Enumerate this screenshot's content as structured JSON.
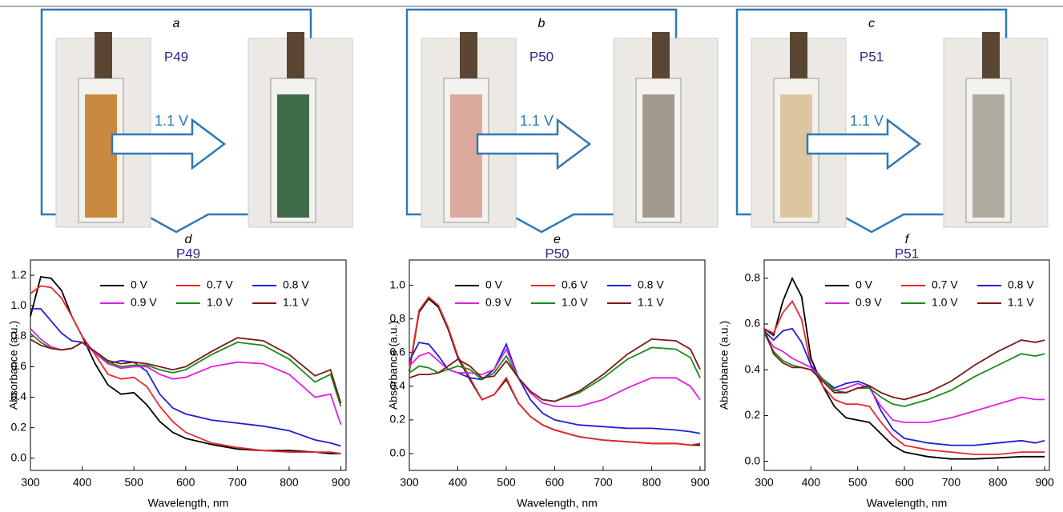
{
  "photo_panels": [
    {
      "label": "a",
      "name": "P49",
      "voltage": "1.1 V"
    },
    {
      "label": "b",
      "name": "P50",
      "voltage": "1.1 V"
    },
    {
      "label": "c",
      "name": "P51",
      "voltage": "1.1 V"
    }
  ],
  "chart_data": [
    {
      "type": "line",
      "label": "d",
      "title": "P49",
      "x_label": "Wavelength, nm",
      "y_label": "Absorbance (a.u.)",
      "x": [
        300,
        320,
        340,
        360,
        380,
        400,
        425,
        450,
        475,
        500,
        525,
        550,
        575,
        600,
        650,
        700,
        750,
        800,
        850,
        880,
        900
      ],
      "xlim": [
        300,
        910
      ],
      "xticks": [
        300,
        400,
        500,
        600,
        700,
        800,
        900
      ],
      "ylim": [
        -0.08,
        1.3
      ],
      "yticks": [
        {
          "value": 0,
          "label": "0.0"
        },
        {
          "value": 0.2,
          "label": "0.2"
        },
        {
          "value": 0.4,
          "label": "0.4"
        },
        {
          "value": 0.6,
          "label": "0.6"
        },
        {
          "value": 0.8,
          "label": "0.8"
        },
        {
          "value": 1,
          "label": "1.0"
        },
        {
          "value": 1.2,
          "label": "1.2"
        }
      ],
      "series": [
        {
          "name": "0 V",
          "color": "#000000",
          "values": [
            0.93,
            1.19,
            1.18,
            1.1,
            0.93,
            0.8,
            0.62,
            0.48,
            0.42,
            0.43,
            0.35,
            0.24,
            0.17,
            0.13,
            0.09,
            0.06,
            0.05,
            0.05,
            0.04,
            0.03,
            0.03
          ]
        },
        {
          "name": "0.7 V",
          "color": "#e8292a",
          "values": [
            1.08,
            1.13,
            1.12,
            1.05,
            0.93,
            0.8,
            0.68,
            0.55,
            0.52,
            0.53,
            0.47,
            0.34,
            0.24,
            0.17,
            0.1,
            0.07,
            0.05,
            0.04,
            0.04,
            0.04,
            0.03
          ]
        },
        {
          "name": "0.8 V",
          "color": "#1f1fd6",
          "values": [
            0.98,
            0.98,
            0.9,
            0.82,
            0.77,
            0.76,
            0.69,
            0.62,
            0.64,
            0.63,
            0.57,
            0.42,
            0.33,
            0.29,
            0.25,
            0.23,
            0.21,
            0.18,
            0.12,
            0.1,
            0.08
          ]
        },
        {
          "name": "0.9 V",
          "color": "#e020e0",
          "values": [
            0.85,
            0.78,
            0.73,
            0.71,
            0.72,
            0.76,
            0.69,
            0.62,
            0.59,
            0.6,
            0.6,
            0.55,
            0.52,
            0.53,
            0.6,
            0.63,
            0.62,
            0.55,
            0.4,
            0.42,
            0.22
          ]
        },
        {
          "name": "1.0 V",
          "color": "#1a8a1a",
          "values": [
            0.82,
            0.76,
            0.72,
            0.71,
            0.72,
            0.76,
            0.7,
            0.63,
            0.6,
            0.61,
            0.61,
            0.58,
            0.56,
            0.58,
            0.68,
            0.76,
            0.74,
            0.65,
            0.5,
            0.55,
            0.34
          ]
        },
        {
          "name": "1.1 V",
          "color": "#7a1a1a",
          "values": [
            0.78,
            0.74,
            0.72,
            0.71,
            0.72,
            0.76,
            0.7,
            0.64,
            0.62,
            0.63,
            0.62,
            0.6,
            0.58,
            0.6,
            0.7,
            0.79,
            0.77,
            0.68,
            0.54,
            0.58,
            0.36
          ]
        }
      ]
    },
    {
      "type": "line",
      "label": "e",
      "title": "P50",
      "x_label": "Wavelength, nm",
      "y_label": "Absorbance (a.u.)",
      "x": [
        300,
        320,
        340,
        360,
        380,
        400,
        425,
        450,
        475,
        500,
        525,
        550,
        575,
        600,
        650,
        700,
        750,
        800,
        850,
        880,
        900
      ],
      "xlim": [
        300,
        910
      ],
      "xticks": [
        300,
        400,
        500,
        600,
        700,
        800,
        900
      ],
      "ylim": [
        -0.1,
        1.15
      ],
      "yticks": [
        {
          "value": 0,
          "label": "0.0"
        },
        {
          "value": 0.2,
          "label": "0.2"
        },
        {
          "value": 0.4,
          "label": "0.4"
        },
        {
          "value": 0.6,
          "label": "0.6"
        },
        {
          "value": 0.8,
          "label": "0.8"
        },
        {
          "value": 1,
          "label": "1.0"
        }
      ],
      "series": [
        {
          "name": "0 V",
          "color": "#000000",
          "values": [
            0.49,
            0.84,
            0.92,
            0.87,
            0.74,
            0.57,
            0.44,
            0.32,
            0.35,
            0.44,
            0.3,
            0.22,
            0.17,
            0.14,
            0.1,
            0.08,
            0.07,
            0.06,
            0.06,
            0.05,
            0.05
          ]
        },
        {
          "name": "0.6 V",
          "color": "#e8292a",
          "values": [
            0.5,
            0.85,
            0.93,
            0.88,
            0.75,
            0.58,
            0.45,
            0.32,
            0.35,
            0.45,
            0.3,
            0.22,
            0.17,
            0.14,
            0.1,
            0.08,
            0.07,
            0.06,
            0.06,
            0.05,
            0.06
          ]
        },
        {
          "name": "0.8 V",
          "color": "#1f1fd6",
          "values": [
            0.55,
            0.66,
            0.65,
            0.58,
            0.5,
            0.48,
            0.45,
            0.44,
            0.5,
            0.65,
            0.45,
            0.32,
            0.24,
            0.2,
            0.17,
            0.16,
            0.15,
            0.15,
            0.14,
            0.13,
            0.12
          ]
        },
        {
          "name": "0.9 V",
          "color": "#e020e0",
          "values": [
            0.52,
            0.58,
            0.6,
            0.55,
            0.5,
            0.48,
            0.48,
            0.47,
            0.5,
            0.62,
            0.45,
            0.36,
            0.3,
            0.28,
            0.28,
            0.32,
            0.39,
            0.45,
            0.45,
            0.4,
            0.32
          ]
        },
        {
          "name": "1.0 V",
          "color": "#1a8a1a",
          "values": [
            0.48,
            0.52,
            0.51,
            0.48,
            0.5,
            0.52,
            0.5,
            0.44,
            0.48,
            0.58,
            0.45,
            0.37,
            0.32,
            0.31,
            0.36,
            0.45,
            0.56,
            0.63,
            0.62,
            0.57,
            0.45
          ]
        },
        {
          "name": "1.1 V",
          "color": "#7a1a1a",
          "values": [
            0.45,
            0.47,
            0.47,
            0.48,
            0.52,
            0.56,
            0.52,
            0.45,
            0.46,
            0.55,
            0.45,
            0.37,
            0.32,
            0.31,
            0.37,
            0.47,
            0.59,
            0.68,
            0.67,
            0.62,
            0.5
          ]
        }
      ]
    },
    {
      "type": "line",
      "label": "f",
      "title": "P51",
      "x_label": "Wavelength, nm",
      "y_label": "Absorbance (a.u.)",
      "x": [
        300,
        320,
        340,
        360,
        380,
        400,
        425,
        450,
        475,
        500,
        525,
        550,
        575,
        600,
        650,
        700,
        750,
        800,
        850,
        880,
        900
      ],
      "xlim": [
        300,
        910
      ],
      "xticks": [
        300,
        400,
        500,
        600,
        700,
        800,
        900
      ],
      "ylim": [
        -0.04,
        0.88
      ],
      "yticks": [
        {
          "value": 0,
          "label": "0.0"
        },
        {
          "value": 0.2,
          "label": "0.2"
        },
        {
          "value": 0.4,
          "label": "0.4"
        },
        {
          "value": 0.6,
          "label": "0.6"
        },
        {
          "value": 0.8,
          "label": "0.8"
        }
      ],
      "series": [
        {
          "name": "0 V",
          "color": "#000000",
          "values": [
            0.58,
            0.55,
            0.7,
            0.8,
            0.72,
            0.45,
            0.33,
            0.24,
            0.19,
            0.18,
            0.17,
            0.12,
            0.07,
            0.04,
            0.02,
            0.01,
            0.01,
            0.015,
            0.02,
            0.02,
            0.02
          ]
        },
        {
          "name": "0.7 V",
          "color": "#e8292a",
          "values": [
            0.58,
            0.56,
            0.65,
            0.7,
            0.62,
            0.42,
            0.33,
            0.27,
            0.25,
            0.25,
            0.24,
            0.17,
            0.11,
            0.07,
            0.05,
            0.04,
            0.03,
            0.03,
            0.04,
            0.04,
            0.04
          ]
        },
        {
          "name": "0.8 V",
          "color": "#1f1fd6",
          "values": [
            0.57,
            0.53,
            0.57,
            0.58,
            0.52,
            0.42,
            0.36,
            0.32,
            0.34,
            0.35,
            0.33,
            0.22,
            0.14,
            0.1,
            0.08,
            0.07,
            0.07,
            0.08,
            0.09,
            0.08,
            0.09
          ]
        },
        {
          "name": "0.9 V",
          "color": "#e020e0",
          "values": [
            0.56,
            0.5,
            0.48,
            0.45,
            0.43,
            0.41,
            0.36,
            0.31,
            0.32,
            0.34,
            0.32,
            0.24,
            0.18,
            0.17,
            0.17,
            0.19,
            0.22,
            0.25,
            0.28,
            0.27,
            0.27
          ]
        },
        {
          "name": "1.0 V",
          "color": "#1a8a1a",
          "values": [
            0.56,
            0.48,
            0.44,
            0.42,
            0.41,
            0.4,
            0.36,
            0.31,
            0.3,
            0.32,
            0.32,
            0.28,
            0.25,
            0.24,
            0.27,
            0.31,
            0.37,
            0.42,
            0.47,
            0.46,
            0.47
          ]
        },
        {
          "name": "1.1 V",
          "color": "#7a1a1a",
          "values": [
            0.58,
            0.47,
            0.43,
            0.41,
            0.41,
            0.4,
            0.35,
            0.3,
            0.3,
            0.32,
            0.33,
            0.3,
            0.28,
            0.27,
            0.3,
            0.35,
            0.42,
            0.48,
            0.53,
            0.52,
            0.53
          ]
        }
      ]
    }
  ]
}
